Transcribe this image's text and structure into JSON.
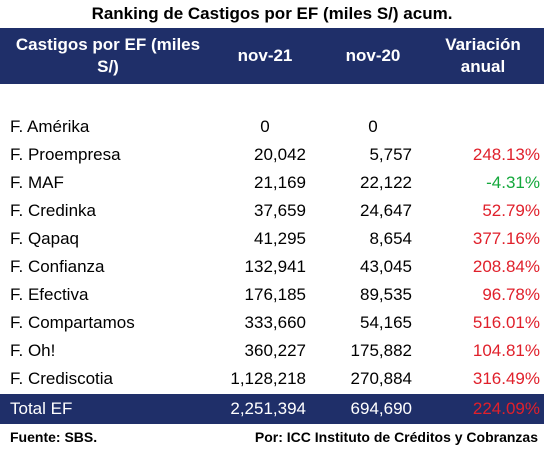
{
  "title": "Ranking de Castigos por EF (miles S/) acum.",
  "header": {
    "col1": "Castigos por EF (miles S/)",
    "col2": "nov-21",
    "col3": "nov-20",
    "col4": "Variación anual"
  },
  "rows": [
    {
      "name": "F. Amérika",
      "nov21": "0",
      "nov20": "0",
      "var": ""
    },
    {
      "name": "F. Proempresa",
      "nov21": "20,042",
      "nov20": "5,757",
      "var": "248.13%"
    },
    {
      "name": "F. MAF",
      "nov21": "21,169",
      "nov20": "22,122",
      "var": "-4.31%"
    },
    {
      "name": "F. Credinka",
      "nov21": "37,659",
      "nov20": "24,647",
      "var": "52.79%"
    },
    {
      "name": "F. Qapaq",
      "nov21": "41,295",
      "nov20": "8,654",
      "var": "377.16%"
    },
    {
      "name": "F. Confianza",
      "nov21": "132,941",
      "nov20": "43,045",
      "var": "208.84%"
    },
    {
      "name": "F. Efectiva",
      "nov21": "176,185",
      "nov20": "89,535",
      "var": "96.78%"
    },
    {
      "name": "F. Compartamos",
      "nov21": "333,660",
      "nov20": "54,165",
      "var": "516.01%"
    },
    {
      "name": "F. Oh!",
      "nov21": "360,227",
      "nov20": "175,882",
      "var": "104.81%"
    },
    {
      "name": "F. Crediscotia",
      "nov21": "1,128,218",
      "nov20": "270,884",
      "var": "316.49%"
    }
  ],
  "total": {
    "name": "Total EF",
    "nov21": "2,251,394",
    "nov20": "694,690",
    "var": "224.09%"
  },
  "footer": {
    "source": "Fuente: SBS.",
    "by": "Por: ICC Instituto de Créditos y Cobranzas"
  },
  "colors": {
    "header_bg": "#1f2f69",
    "negative": "#14a83c",
    "positive": "#e0202b"
  }
}
